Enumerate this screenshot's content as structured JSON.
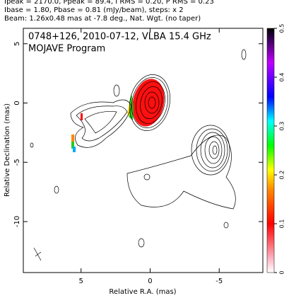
{
  "chart_data": {
    "type": "contour",
    "header": [
      "Ipeak = 2170.0, Ppeak = 89.4, I RMS = 0.20, P RMS = 0.23",
      "Ibase = 1.80, Pbase = 0.81 (mJy/beam), steps: x 2",
      "Beam: 1.26x0.48 mas at -7.8 deg., Nat. Wgt. (no taper)"
    ],
    "title": "0748+126, 2010-07-12, VLBA 15.4 GHz",
    "subtitle": "MOJAVE Program",
    "x_label": "Relative R.A. (mas)",
    "y_label": "Relative Declination (mas)",
    "xlim": [
      9.18,
      -8.16
    ],
    "xticks": [
      5,
      0,
      -5
    ],
    "ylim": [
      -14.3,
      6.3
    ],
    "yticks": [
      5,
      0,
      -5,
      -10
    ],
    "colorbar": {
      "lim": [
        0,
        0.5
      ],
      "ticks": [
        0,
        0.1,
        0.2,
        0.3,
        0.4,
        0.5
      ]
    }
  }
}
